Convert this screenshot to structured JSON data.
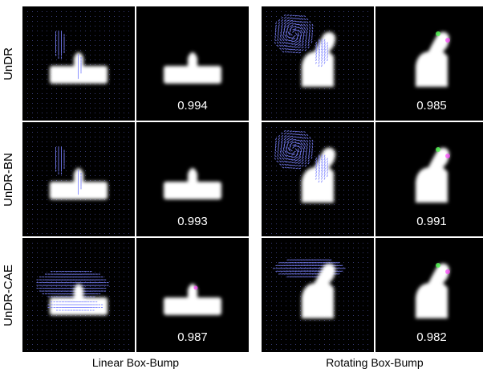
{
  "row_labels": [
    "UnDR",
    "UnDR-BN",
    "UnDR-CAE"
  ],
  "column_captions": [
    "Linear Box-Bump",
    "Rotating Box-Bump"
  ],
  "scores": {
    "linear": [
      "0.994",
      "0.993",
      "0.987"
    ],
    "rotating": [
      "0.985",
      "0.991",
      "0.982"
    ]
  },
  "colors": {
    "background": "#000000",
    "shape": "#ffffff",
    "flow_arrows": "#7b82ff",
    "edge_green": "#55ff55",
    "edge_magenta": "#ff44ff"
  }
}
